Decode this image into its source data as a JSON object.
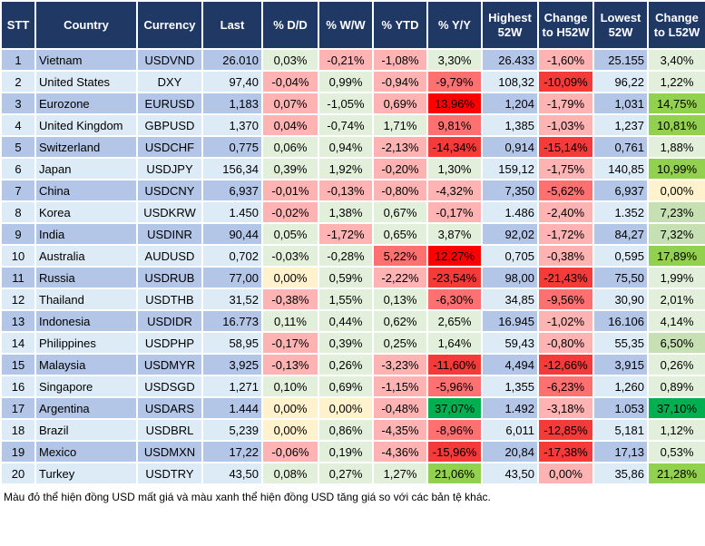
{
  "headers": [
    "STT",
    "Country",
    "Currency",
    "Last",
    "% D/D",
    "% W/W",
    "% YTD",
    "% Y/Y",
    "Highest 52W",
    "Change to H52W",
    "Lowest 52W",
    "Change to L52W"
  ],
  "colors": {
    "header_bg": "#203864",
    "row_odd": "#b4c6e7",
    "row_even": "#ddebf7",
    "p": "#ffb3b3",
    "g": "#e2efda",
    "g2": "#c6e0b4",
    "G": "#92d050",
    "GG": "#00b050",
    "y": "#fff2cc",
    "r1": "#ff7070",
    "r2": "#f53a3a",
    "r3": "#ff0000"
  },
  "rows": [
    {
      "stt": "1",
      "country": "Vietnam",
      "currency": "USDVND",
      "last": "26.010",
      "dd": "0,03%",
      "ww": "-0,21%",
      "ytd": "-1,08%",
      "yy": "3,30%",
      "high": "26.433",
      "chh": "-1,60%",
      "low": "25.155",
      "chl": "3,40%",
      "tones": [
        "g",
        "p",
        "p",
        "g",
        "p",
        "g"
      ]
    },
    {
      "stt": "2",
      "country": "United States",
      "currency": "DXY",
      "last": "97,40",
      "dd": "-0,04%",
      "ww": "0,99%",
      "ytd": "-0,94%",
      "yy": "-9,79%",
      "high": "108,32",
      "chh": "-10,09%",
      "low": "96,22",
      "chl": "1,22%",
      "tones": [
        "p",
        "g",
        "p",
        "r1",
        "r2",
        "g"
      ]
    },
    {
      "stt": "3",
      "country": "Eurozone",
      "currency": "EURUSD",
      "last": "1,183",
      "dd": "0,07%",
      "ww": "-1,05%",
      "ytd": "0,69%",
      "yy": "13,96%",
      "high": "1,204",
      "chh": "-1,79%",
      "low": "1,031",
      "chl": "14,75%",
      "tones": [
        "p",
        "g",
        "p",
        "r3",
        "p",
        "G"
      ]
    },
    {
      "stt": "4",
      "country": "United Kingdom",
      "currency": "GBPUSD",
      "last": "1,370",
      "dd": "0,04%",
      "ww": "-0,74%",
      "ytd": "1,71%",
      "yy": "9,81%",
      "high": "1,385",
      "chh": "-1,03%",
      "low": "1,237",
      "chl": "10,81%",
      "tones": [
        "p",
        "g",
        "g",
        "r1",
        "p",
        "G"
      ]
    },
    {
      "stt": "5",
      "country": "Switzerland",
      "currency": "USDCHF",
      "last": "0,775",
      "dd": "0,06%",
      "ww": "0,94%",
      "ytd": "-2,13%",
      "yy": "-14,34%",
      "high": "0,914",
      "chh": "-15,14%",
      "low": "0,761",
      "chl": "1,88%",
      "tones": [
        "g",
        "g",
        "p",
        "r2",
        "r2",
        "g"
      ]
    },
    {
      "stt": "6",
      "country": "Japan",
      "currency": "USDJPY",
      "last": "156,34",
      "dd": "0,39%",
      "ww": "1,92%",
      "ytd": "-0,20%",
      "yy": "1,30%",
      "high": "159,12",
      "chh": "-1,75%",
      "low": "140,85",
      "chl": "10,99%",
      "tones": [
        "g",
        "g",
        "p",
        "g",
        "p",
        "G"
      ]
    },
    {
      "stt": "7",
      "country": "China",
      "currency": "USDCNY",
      "last": "6,937",
      "dd": "-0,01%",
      "ww": "-0,13%",
      "ytd": "-0,80%",
      "yy": "-4,32%",
      "high": "7,350",
      "chh": "-5,62%",
      "low": "6,937",
      "chl": "0,00%",
      "tones": [
        "p",
        "p",
        "p",
        "p",
        "r1",
        "y"
      ]
    },
    {
      "stt": "8",
      "country": "Korea",
      "currency": "USDKRW",
      "last": "1.450",
      "dd": "-0,02%",
      "ww": "1,38%",
      "ytd": "0,67%",
      "yy": "-0,17%",
      "high": "1.486",
      "chh": "-2,40%",
      "low": "1.352",
      "chl": "7,23%",
      "tones": [
        "p",
        "g",
        "g",
        "p",
        "p",
        "g2"
      ]
    },
    {
      "stt": "9",
      "country": "India",
      "currency": "USDINR",
      "last": "90,44",
      "dd": "0,05%",
      "ww": "-1,72%",
      "ytd": "0,65%",
      "yy": "3,87%",
      "high": "92,02",
      "chh": "-1,72%",
      "low": "84,27",
      "chl": "7,32%",
      "tones": [
        "g",
        "p",
        "g",
        "g",
        "p",
        "g2"
      ]
    },
    {
      "stt": "10",
      "country": "Australia",
      "currency": "AUDUSD",
      "last": "0,702",
      "dd": "-0,03%",
      "ww": "-0,28%",
      "ytd": "5,22%",
      "yy": "12,27%",
      "high": "0,705",
      "chh": "-0,38%",
      "low": "0,595",
      "chl": "17,89%",
      "tones": [
        "g",
        "g",
        "r1",
        "r3",
        "p",
        "G"
      ]
    },
    {
      "stt": "11",
      "country": "Russia",
      "currency": "USDRUB",
      "last": "77,00",
      "dd": "0,00%",
      "ww": "0,59%",
      "ytd": "-2,22%",
      "yy": "-23,54%",
      "high": "98,00",
      "chh": "-21,43%",
      "low": "75,50",
      "chl": "1,99%",
      "tones": [
        "y",
        "g",
        "p",
        "r2",
        "r2",
        "g"
      ]
    },
    {
      "stt": "12",
      "country": "Thailand",
      "currency": "USDTHB",
      "last": "31,52",
      "dd": "-0,38%",
      "ww": "1,55%",
      "ytd": "0,13%",
      "yy": "-6,30%",
      "high": "34,85",
      "chh": "-9,56%",
      "low": "30,90",
      "chl": "2,01%",
      "tones": [
        "p",
        "g",
        "g",
        "r1",
        "r1",
        "g"
      ]
    },
    {
      "stt": "13",
      "country": "Indonesia",
      "currency": "USDIDR",
      "last": "16.773",
      "dd": "0,11%",
      "ww": "0,44%",
      "ytd": "0,62%",
      "yy": "2,65%",
      "high": "16.945",
      "chh": "-1,02%",
      "low": "16.106",
      "chl": "4,14%",
      "tones": [
        "g",
        "g",
        "g",
        "g",
        "p",
        "g"
      ]
    },
    {
      "stt": "14",
      "country": "Philippines",
      "currency": "USDPHP",
      "last": "58,95",
      "dd": "-0,17%",
      "ww": "0,39%",
      "ytd": "0,25%",
      "yy": "1,64%",
      "high": "59,43",
      "chh": "-0,80%",
      "low": "55,35",
      "chl": "6,50%",
      "tones": [
        "p",
        "g",
        "g",
        "g",
        "p",
        "g2"
      ]
    },
    {
      "stt": "15",
      "country": "Malaysia",
      "currency": "USDMYR",
      "last": "3,925",
      "dd": "-0,13%",
      "ww": "0,26%",
      "ytd": "-3,23%",
      "yy": "-11,60%",
      "high": "4,494",
      "chh": "-12,66%",
      "low": "3,915",
      "chl": "0,26%",
      "tones": [
        "p",
        "g",
        "p",
        "r2",
        "r2",
        "g"
      ]
    },
    {
      "stt": "16",
      "country": "Singapore",
      "currency": "USDSGD",
      "last": "1,271",
      "dd": "0,10%",
      "ww": "0,69%",
      "ytd": "-1,15%",
      "yy": "-5,96%",
      "high": "1,355",
      "chh": "-6,23%",
      "low": "1,260",
      "chl": "0,89%",
      "tones": [
        "g",
        "g",
        "p",
        "r1",
        "r1",
        "g"
      ]
    },
    {
      "stt": "17",
      "country": "Argentina",
      "currency": "USDARS",
      "last": "1.444",
      "dd": "0,00%",
      "ww": "0,00%",
      "ytd": "-0,48%",
      "yy": "37,07%",
      "high": "1.492",
      "chh": "-3,18%",
      "low": "1.053",
      "chl": "37,10%",
      "tones": [
        "y",
        "y",
        "p",
        "GG",
        "p",
        "GG"
      ]
    },
    {
      "stt": "18",
      "country": "Brazil",
      "currency": "USDBRL",
      "last": "5,239",
      "dd": "0,00%",
      "ww": "0,86%",
      "ytd": "-4,35%",
      "yy": "-8,96%",
      "high": "6,011",
      "chh": "-12,85%",
      "low": "5,181",
      "chl": "1,12%",
      "tones": [
        "y",
        "g",
        "p",
        "r1",
        "r2",
        "g"
      ]
    },
    {
      "stt": "19",
      "country": "Mexico",
      "currency": "USDMXN",
      "last": "17,22",
      "dd": "-0,06%",
      "ww": "0,19%",
      "ytd": "-4,36%",
      "yy": "-15,96%",
      "high": "20,84",
      "chh": "-17,38%",
      "low": "17,13",
      "chl": "0,53%",
      "tones": [
        "p",
        "g",
        "p",
        "r2",
        "r2",
        "g"
      ]
    },
    {
      "stt": "20",
      "country": "Turkey",
      "currency": "USDTRY",
      "last": "43,50",
      "dd": "0,08%",
      "ww": "0,27%",
      "ytd": "1,27%",
      "yy": "21,06%",
      "high": "43,50",
      "chh": "0,00%",
      "low": "35,86",
      "chl": "21,28%",
      "tones": [
        "g",
        "g",
        "g",
        "G",
        "p",
        "G"
      ]
    }
  ],
  "footnote": "Màu đỏ thể hiện đồng USD mất giá và màu xanh thể hiện đồng USD tăng giá so với các bản tệ khác."
}
